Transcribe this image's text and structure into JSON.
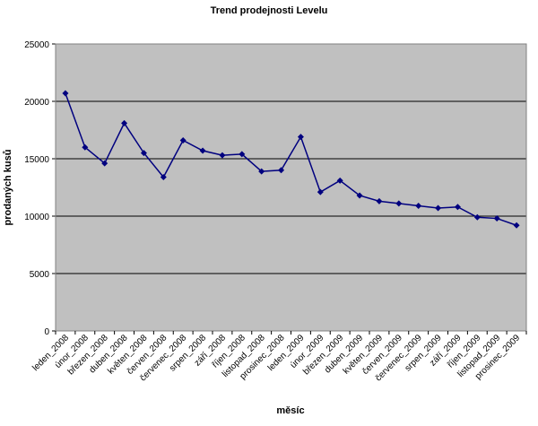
{
  "chart_data": {
    "type": "line",
    "title": "Trend prodejnosti Levelu",
    "xlabel": "měsíc",
    "ylabel": "prodaných kusů",
    "ylim": [
      0,
      25000
    ],
    "yticks": [
      0,
      5000,
      10000,
      15000,
      20000,
      25000
    ],
    "ytick_labels": [
      "0",
      "5000",
      "10000",
      "15000",
      "20000",
      "25000"
    ],
    "grid": true,
    "legend": "none",
    "colors": {
      "plot_background": "#c0c0c0",
      "series_line": "#00007f",
      "grid": "#000000"
    },
    "categories": [
      "leden_2008",
      "únor_2008",
      "březen_2008",
      "duben_2008",
      "květen_2008",
      "červen_2008",
      "červenec_2008",
      "srpen_2008",
      "září_2008",
      "říjen_2008",
      "listopad_2008",
      "prosinec_2008",
      "leden_2009",
      "únor_2009",
      "březen_2009",
      "duben_2009",
      "květen_2009",
      "červen_2009",
      "červenec_2009",
      "srpen_2009",
      "září_2009",
      "říjen_2009",
      "listopad_2009",
      "prosinec_2009"
    ],
    "series": [
      {
        "values": [
          20700,
          16000,
          14600,
          18100,
          15500,
          13400,
          16600,
          15700,
          15300,
          15400,
          13900,
          14000,
          16900,
          12100,
          13100,
          11800,
          11300,
          11100,
          10900,
          10700,
          10800,
          9900,
          9800,
          9200
        ]
      }
    ]
  }
}
